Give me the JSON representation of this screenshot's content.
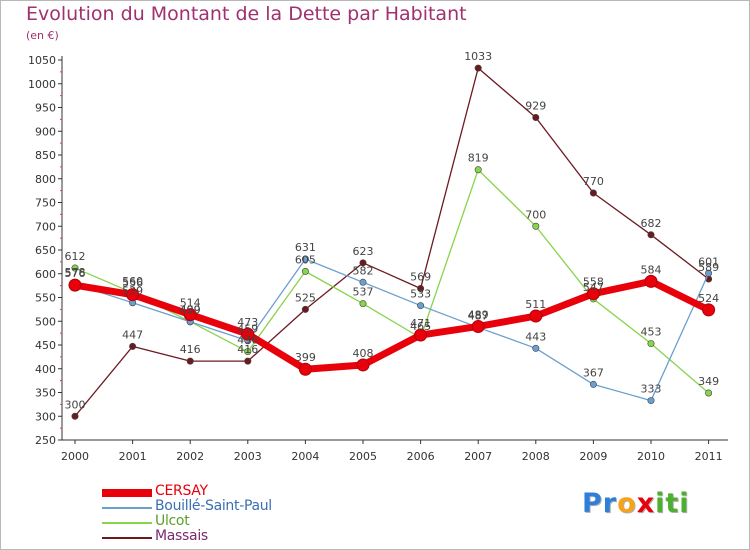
{
  "chart_data": {
    "type": "line",
    "title": "Evolution du Montant de la Dette par Habitant",
    "subtitle": "(en €)",
    "x": [
      "2000",
      "2001",
      "2002",
      "2003",
      "2004",
      "2005",
      "2006",
      "2007",
      "2008",
      "2009",
      "2010",
      "2011"
    ],
    "ylim": [
      250,
      1050
    ],
    "yticks": [
      250,
      300,
      350,
      400,
      450,
      500,
      550,
      600,
      650,
      700,
      750,
      800,
      850,
      900,
      950,
      1000,
      1050
    ],
    "grid": false,
    "legend_position": "bottom-left",
    "series": [
      {
        "name": "CERSAY",
        "color": "#e8000b",
        "emphasis": true,
        "values": [
          576,
          556,
          514,
          473,
          399,
          408,
          471,
          489,
          511,
          558,
          584,
          524
        ]
      },
      {
        "name": "Bouillé-Saint-Paul",
        "color": "#6a9fcf",
        "values": [
          578,
          539,
          499,
          459,
          631,
          582,
          533,
          487,
          443,
          367,
          333,
          601
        ]
      },
      {
        "name": "Ulcot",
        "color": "#88d44a",
        "values": [
          612,
          560,
          499,
          436,
          605,
          537,
          465,
          819,
          700,
          547,
          453,
          349
        ]
      },
      {
        "name": "Massais",
        "color": "#6b1a20",
        "values": [
          300,
          447,
          416,
          416,
          525,
          623,
          569,
          1033,
          929,
          770,
          682,
          589
        ]
      }
    ]
  },
  "logo": {
    "letters": [
      {
        "char": "P",
        "color": "#2f7ed8"
      },
      {
        "char": "r",
        "color": "#2f7ed8"
      },
      {
        "char": "o",
        "color": "#f7a21b"
      },
      {
        "char": "x",
        "color": "#e8000b"
      },
      {
        "char": "i",
        "color": "#4caf2f"
      },
      {
        "char": "t",
        "color": "#4caf2f"
      },
      {
        "char": "i",
        "color": "#4caf2f"
      }
    ]
  }
}
